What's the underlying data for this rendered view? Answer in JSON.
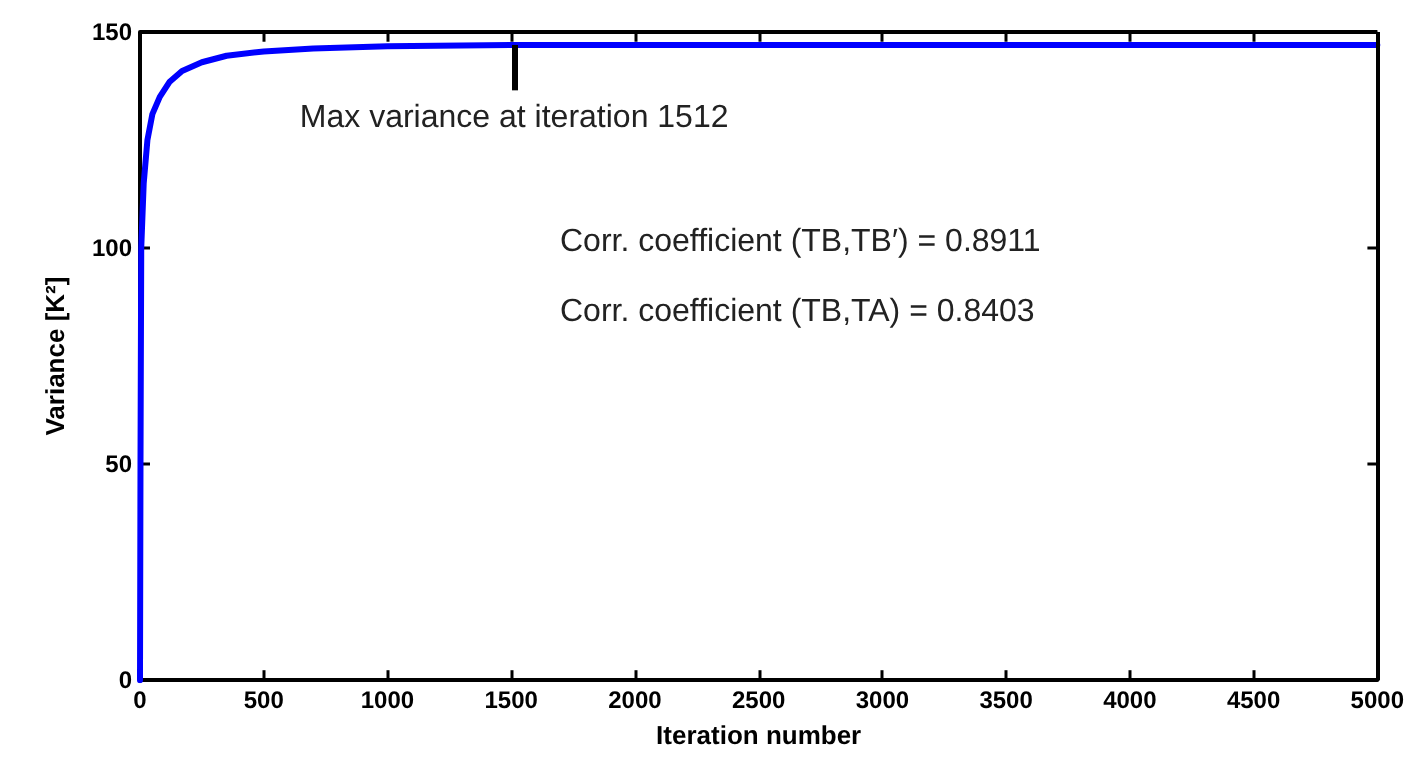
{
  "chart_data": {
    "type": "line",
    "xlabel": "Iteration number",
    "ylabel": "Variance [K²]",
    "x": [
      0,
      2,
      5,
      15,
      30,
      50,
      80,
      120,
      170,
      250,
      350,
      500,
      700,
      1000,
      1512,
      2500,
      5000
    ],
    "series": [
      {
        "color": "#0000ff",
        "values": [
          0,
          50,
          100,
          115,
          125,
          131,
          135,
          138.5,
          141,
          143,
          144.5,
          145.5,
          146.2,
          146.7,
          147,
          147,
          147
        ]
      }
    ],
    "xlim": [
      0,
      5000
    ],
    "xticks": [
      0,
      500,
      1000,
      1500,
      2000,
      2500,
      3000,
      3500,
      4000,
      4500,
      5000
    ],
    "ylim": [
      0,
      150
    ],
    "yticks": [
      0,
      50,
      100,
      150
    ],
    "annotations": [
      {
        "text": "Max variance at iteration 1512",
        "x": 1512,
        "y": 147
      },
      "Corr. coefficient (TB,TB′) = 0.8911",
      "Corr. coefficient (TB,TA) = 0.8403"
    ],
    "grid": false,
    "marker": "none",
    "line_style": "solid"
  }
}
